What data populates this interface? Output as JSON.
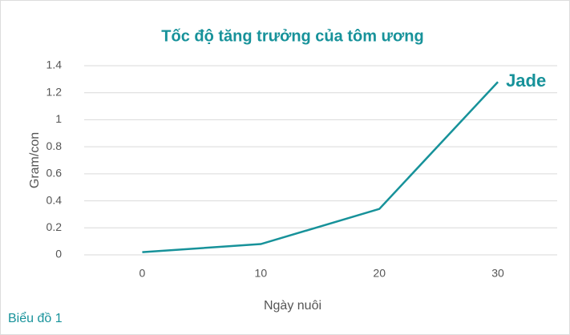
{
  "chart_data": {
    "type": "line",
    "title": "Tốc độ tăng trưởng của tôm ương",
    "ylabel": "Gram/con",
    "xlabel": "Ngày nuôi",
    "caption": "Biểu đồ 1",
    "x": [
      0,
      10,
      20,
      30
    ],
    "series": [
      {
        "name": "Jade",
        "color": "#17929a",
        "values": [
          0.02,
          0.08,
          0.34,
          1.28
        ]
      }
    ],
    "xlim": [
      -4.9,
      35
    ],
    "xticks": [
      0,
      10,
      20,
      30
    ],
    "ylim": [
      0,
      1.4
    ],
    "yticks": [
      0,
      0.2,
      0.4,
      0.6,
      0.8,
      1,
      1.2,
      1.4
    ],
    "grid": true
  }
}
